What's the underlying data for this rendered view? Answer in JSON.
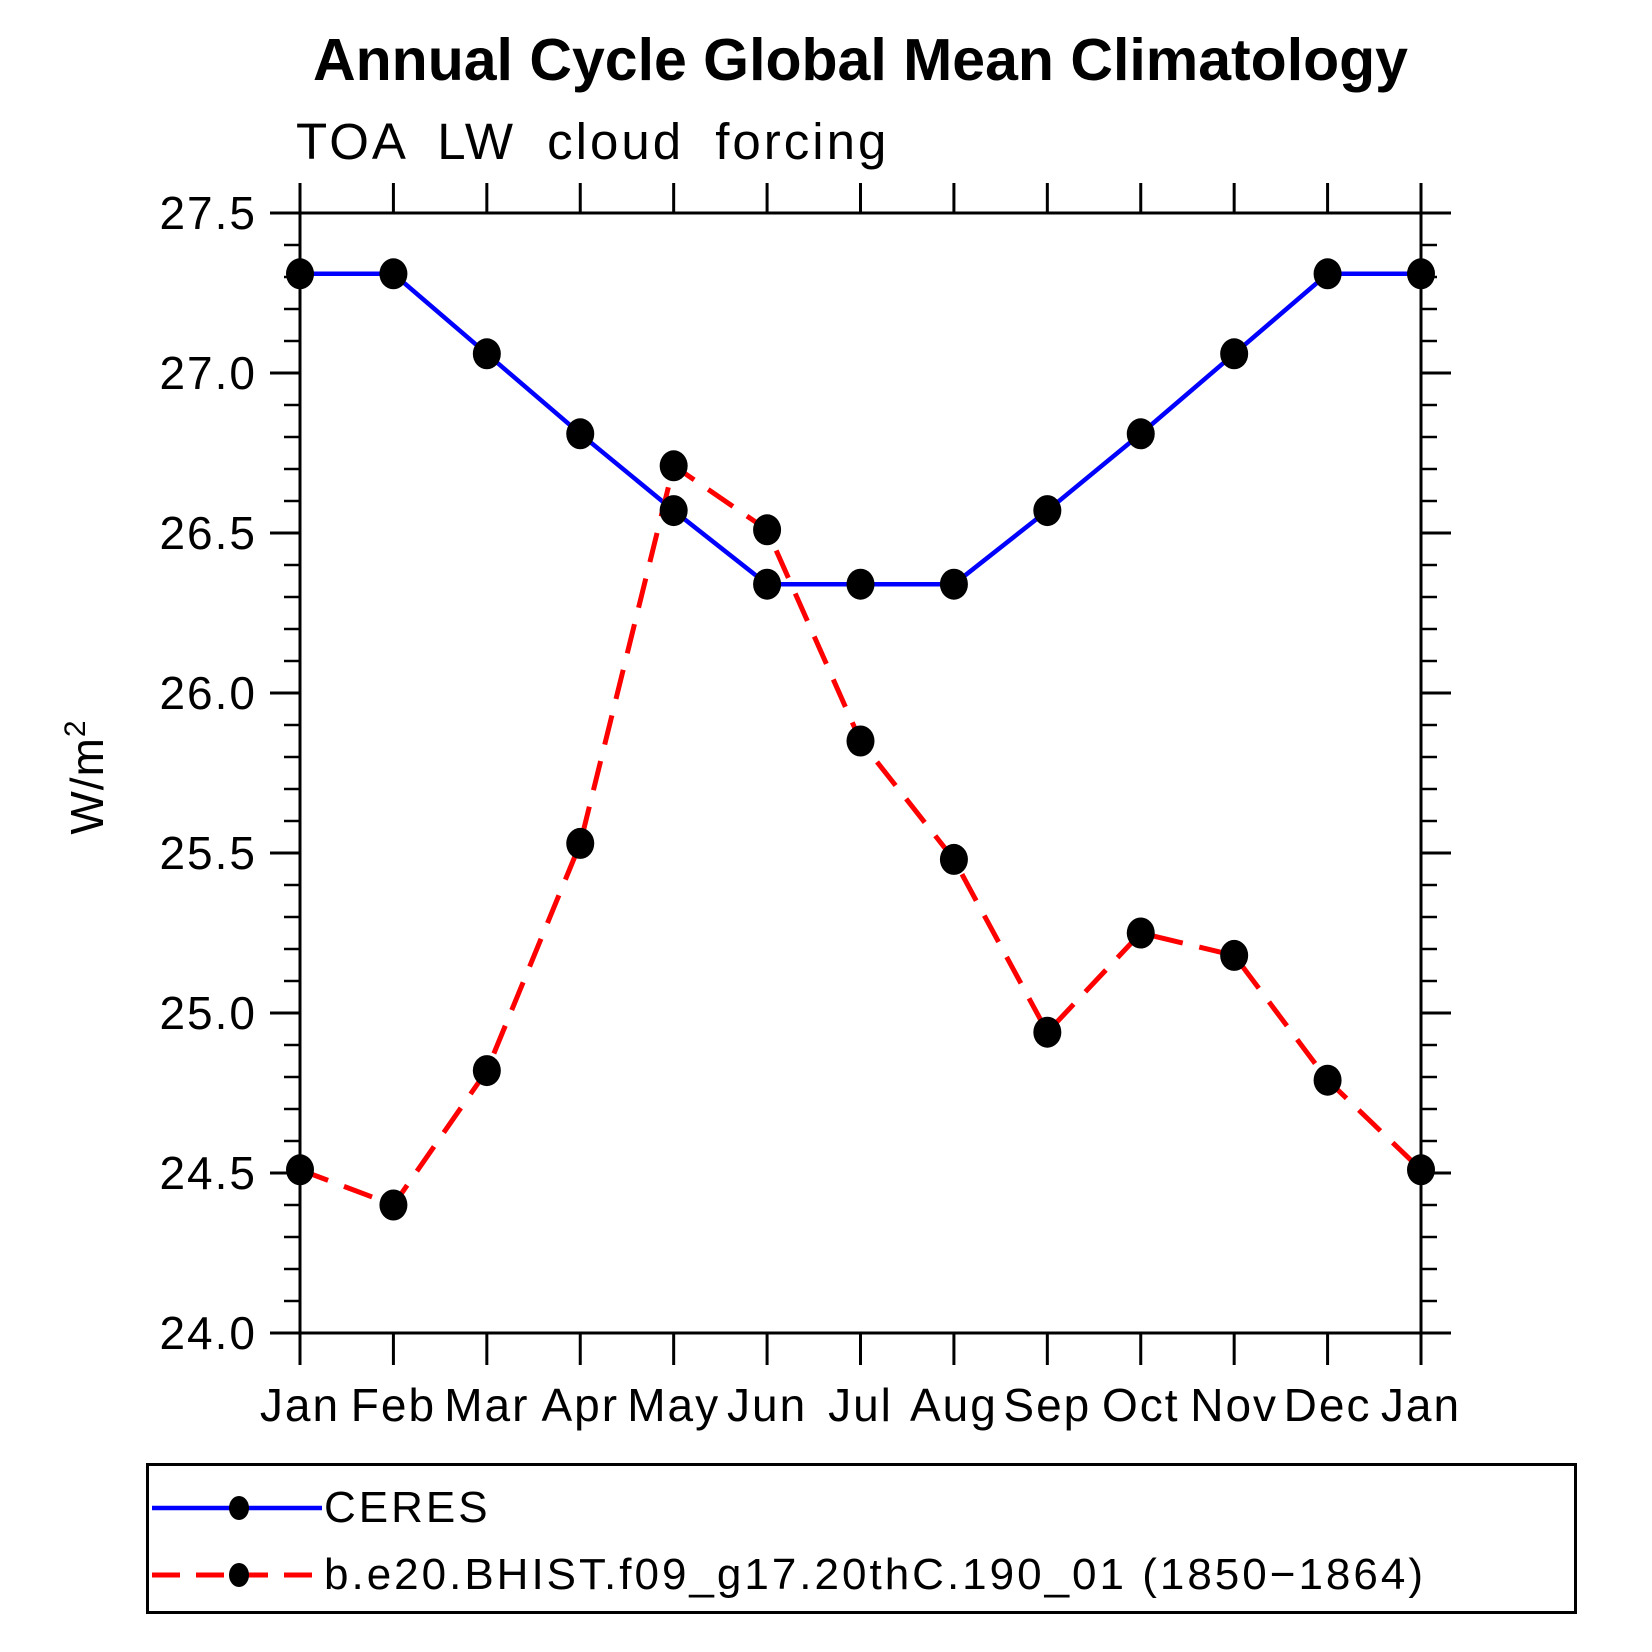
{
  "header": {
    "title": "Annual Cycle Global Mean Climatology",
    "subtitle": "TOA LW cloud forcing"
  },
  "chart_data": {
    "type": "line",
    "title": "Annual Cycle Global Mean Climatology",
    "subtitle": "TOA LW cloud forcing",
    "ylabel_base": "W/m",
    "ylabel_exponent": "2",
    "x_categories": [
      "Jan",
      "Feb",
      "Mar",
      "Apr",
      "May",
      "Jun",
      "Jul",
      "Aug",
      "Sep",
      "Oct",
      "Nov",
      "Dec",
      "Jan"
    ],
    "ylim": [
      24.0,
      27.5
    ],
    "ytick_labels": [
      "24.0",
      "24.5",
      "25.0",
      "25.5",
      "26.0",
      "26.5",
      "27.0",
      "27.5"
    ],
    "ytick_values": [
      24.0,
      24.5,
      25.0,
      25.5,
      26.0,
      26.5,
      27.0,
      27.5
    ],
    "ytick_minor_step": 0.1,
    "grid": false,
    "legend_position": "bottom",
    "marker_color": "#000000",
    "series": [
      {
        "name": "CERES",
        "color": "#0000ff",
        "style": "solid",
        "values": [
          27.31,
          27.31,
          27.06,
          26.81,
          26.57,
          26.34,
          26.34,
          26.34,
          26.57,
          26.81,
          27.06,
          27.31,
          27.31
        ]
      },
      {
        "name": "b.e20.BHIST.f09_g17.20thC.190_01 (1850−1864)",
        "color": "#ff0000",
        "style": "dashed",
        "values": [
          24.51,
          24.4,
          24.82,
          25.53,
          26.71,
          26.51,
          25.85,
          25.48,
          24.94,
          25.25,
          25.18,
          24.79,
          24.51
        ]
      }
    ]
  }
}
